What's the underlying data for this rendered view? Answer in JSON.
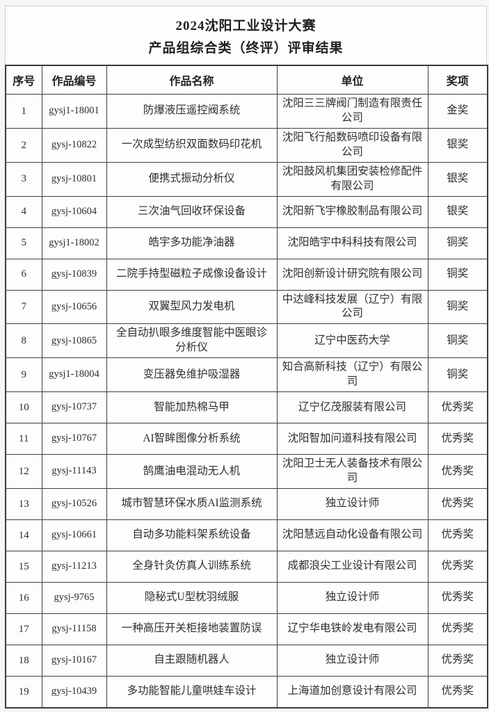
{
  "page": {
    "title_line1": "2024沈阳工业设计大赛",
    "title_line2": "产品组综合类（终评）评审结果"
  },
  "table": {
    "headers": [
      "序号",
      "作品编号",
      "作品名称",
      "单位",
      "奖项"
    ],
    "rows": [
      {
        "index": "1",
        "code": "gysj1-18001",
        "name": "防爆液压遥控阀系统",
        "unit": "沈阳三三牌阀门制造有限责任公司",
        "award": "金奖"
      },
      {
        "index": "2",
        "code": "gysj-10822",
        "name": "一次成型纺织双面数码印花机",
        "unit": "沈阳飞行船数码喷印设备有限公司",
        "award": "银奖"
      },
      {
        "index": "3",
        "code": "gysj-10801",
        "name": "便携式振动分析仪",
        "unit": "沈阳鼓风机集团安装检修配件有限公司",
        "award": "银奖"
      },
      {
        "index": "4",
        "code": "gysj-10604",
        "name": "三次油气回收环保设备",
        "unit": "沈阳新飞宇橡胶制品有限公司",
        "award": "银奖"
      },
      {
        "index": "5",
        "code": "gysj1-18002",
        "name": "皓宇多功能净油器",
        "unit": "沈阳皓宇中科科技有限公司",
        "award": "铜奖"
      },
      {
        "index": "6",
        "code": "gysj-10839",
        "name": "二院手持型磁粒子成像设备设计",
        "unit": "沈阳创新设计研究院有限公司",
        "award": "铜奖"
      },
      {
        "index": "7",
        "code": "gysj-10656",
        "name": "双翼型风力发电机",
        "unit": "中达峰科技发展（辽宁）有限公司",
        "award": "铜奖"
      },
      {
        "index": "8",
        "code": "gysj-10865",
        "name": "全自动扒眼多维度智能中医眼诊分析仪",
        "unit": "辽宁中医药大学",
        "award": "铜奖"
      },
      {
        "index": "9",
        "code": "gysj1-18004",
        "name": "变压器免维护吸湿器",
        "unit": "知合高新科技（辽宁）有限公司",
        "award": "铜奖"
      },
      {
        "index": "10",
        "code": "gysj-10737",
        "name": "智能加热棉马甲",
        "unit": "辽宁亿茂服装有限公司",
        "award": "优秀奖"
      },
      {
        "index": "11",
        "code": "gysj-10767",
        "name": "AI智眸图像分析系统",
        "unit": "沈阳智加问道科技有限公司",
        "award": "优秀奖"
      },
      {
        "index": "12",
        "code": "gysj-11143",
        "name": "鹄鹰油电混动无人机",
        "unit": "沈阳卫士无人装备技术有限公司",
        "award": "优秀奖"
      },
      {
        "index": "13",
        "code": "gysj-10526",
        "name": "城市智慧环保水质AI监测系统",
        "unit": "独立设计师",
        "award": "优秀奖"
      },
      {
        "index": "14",
        "code": "gysj-10661",
        "name": "自动多功能料架系统设备",
        "unit": "沈阳慧远自动化设备有限公司",
        "award": "优秀奖"
      },
      {
        "index": "15",
        "code": "gysj-11213",
        "name": "全身针灸仿真人训练系统",
        "unit": "成都浪尖工业设计有限公司",
        "award": "优秀奖"
      },
      {
        "index": "16",
        "code": "gysj-9765",
        "name": "隐秘式U型枕羽绒服",
        "unit": "独立设计师",
        "award": "优秀奖"
      },
      {
        "index": "17",
        "code": "gysj-11158",
        "name": "一种高压开关柜接地装置防误",
        "unit": "辽宁华电铁岭发电有限公司",
        "award": "优秀奖"
      },
      {
        "index": "18",
        "code": "gysj-10167",
        "name": "自主跟随机器人",
        "unit": "独立设计师",
        "award": "优秀奖"
      },
      {
        "index": "19",
        "code": "gysj-10439",
        "name": "多功能智能儿童哄娃车设计",
        "unit": "上海道加创意设计有限公司",
        "award": "优秀奖"
      }
    ]
  },
  "colors": {
    "table_border_dark": "#404040",
    "outer_frame_light": "#d2d2d0",
    "text": "#2e2e2e",
    "page_background": "#fdfdfc"
  }
}
